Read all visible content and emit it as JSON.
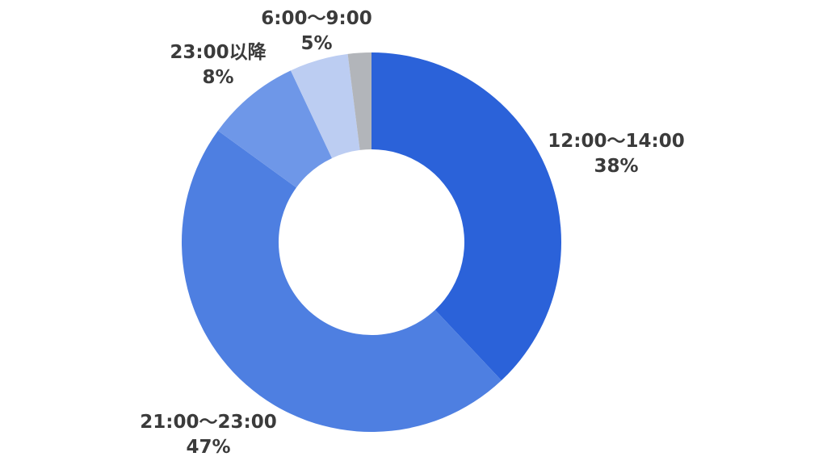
{
  "chart_data": {
    "type": "pie",
    "subtype": "donut",
    "title": "",
    "legend": "none",
    "start_angle_deg": -90,
    "direction": "clockwise",
    "inner_radius_ratio": 0.49,
    "categories": [
      "12:00〜14:00",
      "21:00〜23:00",
      "23:00以降",
      "6:00〜9:00",
      "unlabeled"
    ],
    "values": [
      38,
      47,
      8,
      5,
      2
    ],
    "unit": "%",
    "colors": [
      "#2b62d9",
      "#4e7fe1",
      "#6e97e8",
      "#bccdf2",
      "#b2b5ba"
    ],
    "background_color": "#ffffff",
    "label_color": "#3b3b3b",
    "labels": [
      {
        "line1": "12:00〜14:00",
        "line2": "38%"
      },
      {
        "line1": "21:00〜23:00",
        "line2": "47%"
      },
      {
        "line1": "23:00以降",
        "line2": "8%"
      },
      {
        "line1": "6:00〜9:00",
        "line2": "5%"
      }
    ]
  }
}
